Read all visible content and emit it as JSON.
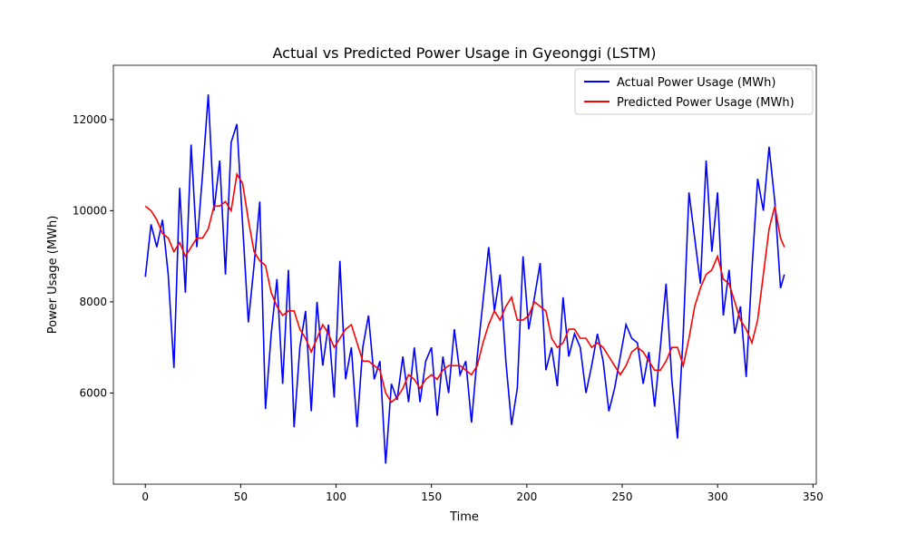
{
  "chart_data": {
    "type": "line",
    "title": "Actual vs Predicted Power Usage in Gyeonggi (LSTM)",
    "x_label": "Time",
    "y_label": "Power Usage (MWh)",
    "x": [
      0,
      3,
      6,
      9,
      12,
      15,
      18,
      21,
      24,
      27,
      30,
      33,
      36,
      39,
      42,
      45,
      48,
      51,
      54,
      57,
      60,
      63,
      66,
      69,
      72,
      75,
      78,
      81,
      84,
      87,
      90,
      93,
      96,
      99,
      102,
      105,
      108,
      111,
      114,
      117,
      120,
      123,
      126,
      129,
      132,
      135,
      138,
      141,
      144,
      147,
      150,
      153,
      156,
      159,
      162,
      165,
      168,
      171,
      174,
      177,
      180,
      183,
      186,
      189,
      192,
      195,
      198,
      201,
      204,
      207,
      210,
      213,
      216,
      219,
      222,
      225,
      228,
      231,
      234,
      237,
      240,
      243,
      246,
      249,
      252,
      255,
      258,
      261,
      264,
      267,
      270,
      273,
      276,
      279,
      282,
      285,
      288,
      291,
      294,
      297,
      300,
      303,
      306,
      309,
      312,
      315,
      318,
      321,
      324,
      327,
      330,
      333,
      335
    ],
    "series": [
      {
        "name": "Actual Power Usage (MWh)",
        "color": "#0000ff",
        "values": [
          8550,
          9700,
          9200,
          9800,
          8600,
          6550,
          10500,
          8200,
          11450,
          9200,
          10800,
          12550,
          10000,
          11100,
          8600,
          11500,
          11900,
          9700,
          7550,
          8800,
          10200,
          5650,
          7300,
          8500,
          6200,
          8700,
          5250,
          7000,
          7800,
          5600,
          8000,
          6600,
          7500,
          5900,
          8900,
          6300,
          7000,
          5250,
          7000,
          7700,
          6300,
          6700,
          4450,
          6200,
          5850,
          6800,
          5800,
          7000,
          5800,
          6700,
          7000,
          5500,
          6800,
          6000,
          7400,
          6400,
          6700,
          5350,
          6800,
          8000,
          9200,
          7800,
          8600,
          6700,
          5300,
          6100,
          9000,
          7400,
          8100,
          8850,
          6500,
          7000,
          6150,
          8100,
          6800,
          7300,
          7000,
          6000,
          6600,
          7300,
          6700,
          5600,
          6100,
          6800,
          7500,
          7200,
          7100,
          6200,
          6900,
          5700,
          7000,
          8400,
          6300,
          5000,
          7300,
          10400,
          9400,
          8400,
          11100,
          9100,
          10400,
          7700,
          8700,
          7300,
          7900,
          6350,
          8700,
          10700,
          10000,
          11400,
          10200,
          8300,
          8600
        ]
      },
      {
        "name": "Predicted Power Usage (MWh)",
        "color": "#ff0000",
        "values": [
          10100,
          10000,
          9800,
          9500,
          9400,
          9100,
          9300,
          9000,
          9200,
          9400,
          9400,
          9600,
          10100,
          10100,
          10200,
          10000,
          10800,
          10600,
          9800,
          9100,
          8900,
          8800,
          8200,
          7900,
          7700,
          7800,
          7800,
          7400,
          7200,
          6900,
          7200,
          7500,
          7300,
          7000,
          7200,
          7400,
          7500,
          7100,
          6700,
          6700,
          6600,
          6500,
          6000,
          5800,
          5900,
          6100,
          6400,
          6300,
          6100,
          6300,
          6400,
          6300,
          6500,
          6600,
          6600,
          6600,
          6500,
          6400,
          6600,
          7100,
          7500,
          7800,
          7600,
          7900,
          8100,
          7600,
          7600,
          7700,
          8000,
          7900,
          7800,
          7200,
          7000,
          7100,
          7400,
          7400,
          7200,
          7200,
          7000,
          7100,
          7000,
          6800,
          6600,
          6400,
          6600,
          6900,
          7000,
          6900,
          6700,
          6500,
          6500,
          6700,
          7000,
          7000,
          6600,
          7200,
          7900,
          8300,
          8600,
          8700,
          9000,
          8500,
          8400,
          8000,
          7600,
          7400,
          7100,
          7600,
          8600,
          9600,
          10100,
          9400,
          9200
        ]
      }
    ],
    "xlim": [
      -16.75,
      351.75
    ],
    "xticks": [
      0,
      50,
      100,
      150,
      200,
      250,
      300,
      350
    ],
    "ylim": [
      4000,
      13190
    ],
    "yticks": [
      6000,
      8000,
      10000,
      12000
    ],
    "legend": "upper right",
    "grid": false
  }
}
